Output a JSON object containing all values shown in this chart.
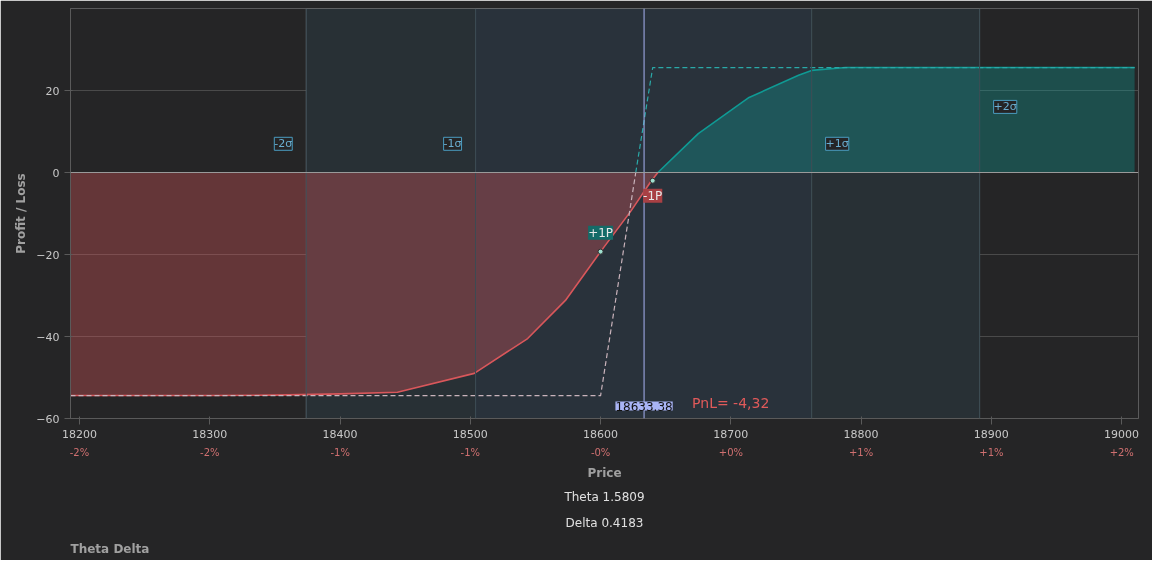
{
  "chart_data": {
    "type": "area",
    "ylabel": "Profit / Loss",
    "xlabel": "Price",
    "xlim": [
      18193,
      19013
    ],
    "ylim": [
      -60,
      40
    ],
    "xticks": [
      18200,
      18300,
      18400,
      18500,
      18600,
      18700,
      18800,
      18900,
      19000
    ],
    "x2lim": [
      -2.363,
      2.037
    ],
    "x2ticks": [
      {
        "value": -2.326,
        "label": "-2%"
      },
      {
        "value": -1.789,
        "label": "-2%"
      },
      {
        "value": -1.252,
        "label": "-1%"
      },
      {
        "value": -0.716,
        "label": "-1%"
      },
      {
        "value": -0.179,
        "label": "-0%"
      },
      {
        "value": 0.358,
        "label": "+0%"
      },
      {
        "value": 0.894,
        "label": "+1%"
      },
      {
        "value": 1.431,
        "label": "+1%"
      },
      {
        "value": 1.968,
        "label": "+2%"
      }
    ],
    "yticks": [
      -60,
      -40,
      -20,
      0,
      20
    ],
    "grid": "y",
    "series": [
      {
        "color": "#d9575b",
        "x": [
          18193,
          18300,
          18350,
          18400,
          18444,
          18503,
          18544,
          18573,
          18600,
          18623.5,
          18639,
          18644
        ],
        "values": [
          -54.4,
          -54.4,
          -54.3,
          -54.0,
          -53.6,
          -49,
          -40.5,
          -31.2,
          -19.3,
          -9.3,
          -2,
          0
        ]
      },
      {
        "color": "#0f9a94",
        "x": [
          18644,
          18675,
          18714,
          18752,
          18762,
          18788,
          18850,
          19010
        ],
        "values": [
          0,
          9.5,
          18.3,
          23.7,
          24.9,
          25.6,
          25.6,
          25.6
        ]
      },
      {
        "type": "line",
        "line_style": "dashed",
        "color": "#c9b3bb",
        "x": [
          18193,
          18600,
          18627
        ],
        "values": [
          -54.4,
          -54.4,
          0
        ]
      },
      {
        "type": "line",
        "line_style": "dashed",
        "color": "#2aa9a8",
        "x": [
          18627,
          18640,
          19010
        ],
        "values": [
          0,
          25.6,
          25.6
        ]
      }
    ],
    "bands": [
      {
        "axis": "x",
        "from": 18374,
        "to": 18891,
        "color": "#283035"
      },
      {
        "axis": "x",
        "from": 18504,
        "to": 18762,
        "color": "#29323b"
      }
    ],
    "ref_lines": [
      {
        "axis": "x",
        "value": 18374,
        "label": "-2σ",
        "color": "#3a4a52"
      },
      {
        "axis": "x",
        "value": 18504,
        "label": "-1σ",
        "color": "#3a4a52"
      },
      {
        "axis": "x",
        "value": 18762,
        "label": "+1σ",
        "color": "#3a4a52"
      },
      {
        "axis": "x",
        "value": 18891,
        "label": "+2σ",
        "color": "#3a4a52"
      },
      {
        "axis": "x",
        "value": 18633.38,
        "label": "18633.38",
        "color": "#a9b4f5"
      },
      {
        "axis": "y",
        "value": 0,
        "color": "#9a9a9a"
      }
    ],
    "annotations": [
      {
        "text": "+1P",
        "x": 18600,
        "y": -19.3
      },
      {
        "text": "-1P",
        "x": 18640,
        "y": -2
      },
      "PnL= -4,32",
      "Theta",
      "Delta",
      "Theta 1.5809",
      "Delta 0.4183"
    ]
  }
}
